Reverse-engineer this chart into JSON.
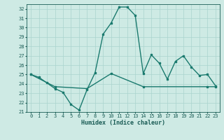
{
  "xlabel": "Humidex (Indice chaleur)",
  "xlim": [
    -0.5,
    23.5
  ],
  "ylim": [
    21,
    32.5
  ],
  "yticks": [
    21,
    22,
    23,
    24,
    25,
    26,
    27,
    28,
    29,
    30,
    31,
    32
  ],
  "xticks": [
    0,
    1,
    2,
    3,
    4,
    5,
    6,
    7,
    8,
    9,
    10,
    11,
    12,
    13,
    14,
    15,
    16,
    17,
    18,
    19,
    20,
    21,
    22,
    23
  ],
  "xtick_labels": [
    "0",
    "1",
    "2",
    "3",
    "4",
    "5",
    "6",
    "7",
    "8",
    "9",
    "10",
    "11",
    "12",
    "13",
    "14",
    "15",
    "16",
    "17",
    "18",
    "19",
    "20",
    "21",
    "22",
    "23"
  ],
  "line1_x": [
    0,
    1,
    2,
    3,
    4,
    5,
    6,
    7,
    8,
    9,
    10,
    11,
    12,
    13,
    14,
    15,
    16,
    17,
    18,
    19,
    20,
    21,
    22,
    23
  ],
  "line1_y": [
    25.0,
    24.7,
    24.1,
    23.5,
    23.1,
    21.8,
    21.2,
    23.4,
    25.2,
    29.3,
    30.5,
    32.2,
    32.2,
    31.3,
    25.1,
    27.1,
    26.2,
    24.5,
    26.4,
    27.0,
    25.8,
    24.9,
    25.0,
    23.8
  ],
  "line2_x": [
    0,
    3,
    7,
    10,
    14,
    22,
    23
  ],
  "line2_y": [
    25.0,
    23.7,
    23.5,
    25.1,
    23.7,
    23.7,
    23.7
  ],
  "line_color": "#1a7a6e",
  "bg_color": "#ceeae4",
  "grid_color": "#aad4ce",
  "font_color": "#1a5c55",
  "marker": "s",
  "marker_size": 2.0,
  "line_width": 1.0,
  "tick_fontsize": 5.0,
  "xlabel_fontsize": 6.0
}
